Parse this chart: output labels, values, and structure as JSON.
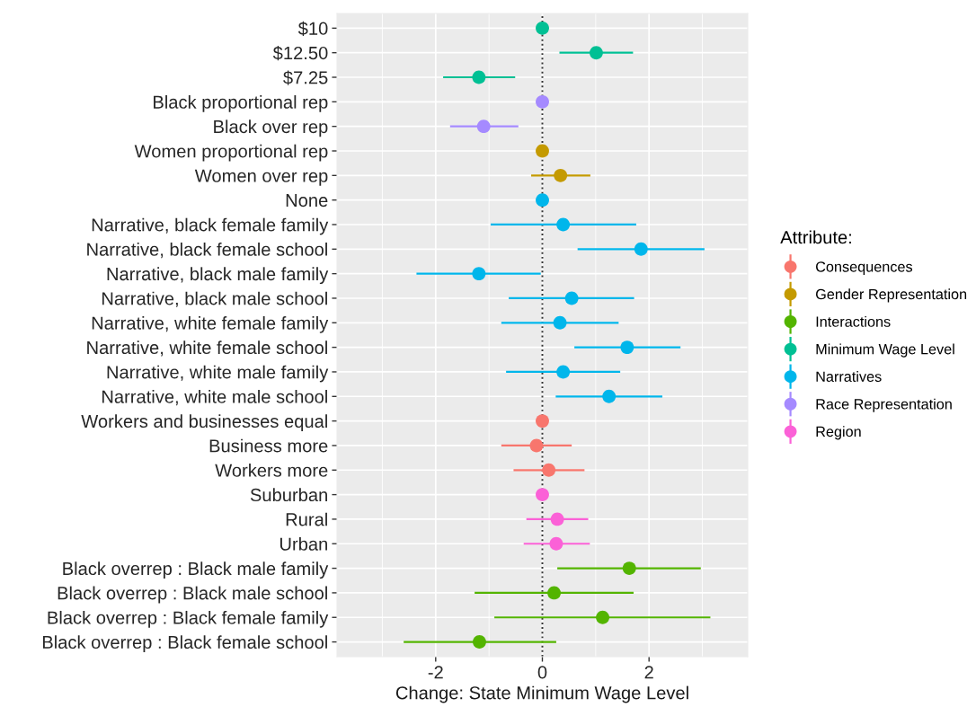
{
  "chart_data": {
    "type": "scatter",
    "orientation": "horizontal",
    "xlabel": "Change: State Minimum Wage Level",
    "legend_title": "Attribute:",
    "legend": "right",
    "grid": true,
    "marker": "circle",
    "xlim": [
      -3.85,
      3.85
    ],
    "xticks": [
      -2,
      0,
      2
    ],
    "ref_lines": [
      {
        "axis": "x",
        "value": 0,
        "line_style": "dotted",
        "color": "#333333"
      }
    ],
    "categories": [
      "$10",
      "$12.50",
      "$7.25",
      "Black proportional rep",
      "Black over rep",
      "Women proportional rep",
      "Women over rep",
      "None",
      "Narrative, black female family",
      "Narrative, black female school",
      "Narrative, black male family",
      "Narrative, black male school",
      "Narrative, white female family",
      "Narrative, white female school",
      "Narrative, white male family",
      "Narrative, white male school",
      "Workers and businesses equal",
      "Business more",
      "Workers more",
      "Suburban",
      "Rural",
      "Urban",
      "Black overrep : Black male family",
      "Black overrep : Black male school",
      "Black overrep : Black female family",
      "Black overrep : Black female school"
    ],
    "series": [
      {
        "name": "Consequences",
        "color": "#f8766d",
        "values": [
          null,
          null,
          null,
          null,
          null,
          null,
          null,
          null,
          null,
          null,
          null,
          null,
          null,
          null,
          null,
          null,
          0,
          -0.11,
          0.12,
          null,
          null,
          null,
          null,
          null,
          null,
          null
        ],
        "errors": [
          null,
          null,
          null,
          null,
          null,
          null,
          null,
          null,
          null,
          null,
          null,
          null,
          null,
          null,
          null,
          null,
          null,
          [
            -0.77,
            0.55
          ],
          [
            -0.54,
            0.79
          ],
          null,
          null,
          null,
          null,
          null,
          null,
          null
        ]
      },
      {
        "name": "Gender Representation",
        "color": "#c49a00",
        "values": [
          null,
          null,
          null,
          null,
          null,
          0,
          0.34,
          null,
          null,
          null,
          null,
          null,
          null,
          null,
          null,
          null,
          null,
          null,
          null,
          null,
          null,
          null,
          null,
          null,
          null,
          null
        ],
        "errors": [
          null,
          null,
          null,
          null,
          null,
          null,
          [
            -0.21,
            0.9
          ],
          null,
          null,
          null,
          null,
          null,
          null,
          null,
          null,
          null,
          null,
          null,
          null,
          null,
          null,
          null,
          null,
          null,
          null,
          null
        ]
      },
      {
        "name": "Interactions",
        "color": "#53b400",
        "values": [
          null,
          null,
          null,
          null,
          null,
          null,
          null,
          null,
          null,
          null,
          null,
          null,
          null,
          null,
          null,
          null,
          null,
          null,
          null,
          null,
          null,
          null,
          1.63,
          0.22,
          1.13,
          -1.18
        ],
        "errors": [
          null,
          null,
          null,
          null,
          null,
          null,
          null,
          null,
          null,
          null,
          null,
          null,
          null,
          null,
          null,
          null,
          null,
          null,
          null,
          null,
          null,
          null,
          [
            0.28,
            2.97
          ],
          [
            -1.27,
            1.71
          ],
          [
            -0.9,
            3.15
          ],
          [
            -2.6,
            0.26
          ]
        ]
      },
      {
        "name": "Minimum Wage Level",
        "color": "#00c094",
        "values": [
          0,
          1.01,
          -1.19,
          null,
          null,
          null,
          null,
          null,
          null,
          null,
          null,
          null,
          null,
          null,
          null,
          null,
          null,
          null,
          null,
          null,
          null,
          null,
          null,
          null,
          null,
          null
        ],
        "errors": [
          null,
          [
            0.32,
            1.7
          ],
          [
            -1.86,
            -0.51
          ],
          null,
          null,
          null,
          null,
          null,
          null,
          null,
          null,
          null,
          null,
          null,
          null,
          null,
          null,
          null,
          null,
          null,
          null,
          null,
          null,
          null,
          null,
          null
        ]
      },
      {
        "name": "Narratives",
        "color": "#00b6eb",
        "values": [
          null,
          null,
          null,
          null,
          null,
          null,
          null,
          0,
          0.39,
          1.85,
          -1.19,
          0.55,
          0.33,
          1.59,
          0.39,
          1.25,
          null,
          null,
          null,
          null,
          null,
          null,
          null,
          null,
          null,
          null
        ],
        "errors": [
          null,
          null,
          null,
          null,
          null,
          null,
          null,
          null,
          [
            -0.97,
            1.76
          ],
          [
            0.66,
            3.04
          ],
          [
            -2.36,
            -0.03
          ],
          [
            -0.63,
            1.72
          ],
          [
            -0.77,
            1.43
          ],
          [
            0.6,
            2.59
          ],
          [
            -0.68,
            1.46
          ],
          [
            0.25,
            2.25
          ],
          null,
          null,
          null,
          null,
          null,
          null,
          null,
          null,
          null,
          null
        ]
      },
      {
        "name": "Race Representation",
        "color": "#a58aff",
        "values": [
          null,
          null,
          null,
          0,
          -1.1,
          null,
          null,
          null,
          null,
          null,
          null,
          null,
          null,
          null,
          null,
          null,
          null,
          null,
          null,
          null,
          null,
          null,
          null,
          null,
          null,
          null
        ],
        "errors": [
          null,
          null,
          null,
          null,
          [
            -1.73,
            -0.45
          ],
          null,
          null,
          null,
          null,
          null,
          null,
          null,
          null,
          null,
          null,
          null,
          null,
          null,
          null,
          null,
          null,
          null,
          null,
          null,
          null,
          null
        ]
      },
      {
        "name": "Region",
        "color": "#fb61d7",
        "values": [
          null,
          null,
          null,
          null,
          null,
          null,
          null,
          null,
          null,
          null,
          null,
          null,
          null,
          null,
          null,
          null,
          null,
          null,
          null,
          0,
          0.28,
          0.26,
          null,
          null,
          null,
          null
        ],
        "errors": [
          null,
          null,
          null,
          null,
          null,
          null,
          null,
          null,
          null,
          null,
          null,
          null,
          null,
          null,
          null,
          null,
          null,
          null,
          null,
          null,
          [
            -0.3,
            0.86
          ],
          [
            -0.35,
            0.89
          ],
          null,
          null,
          null,
          null
        ]
      }
    ]
  }
}
